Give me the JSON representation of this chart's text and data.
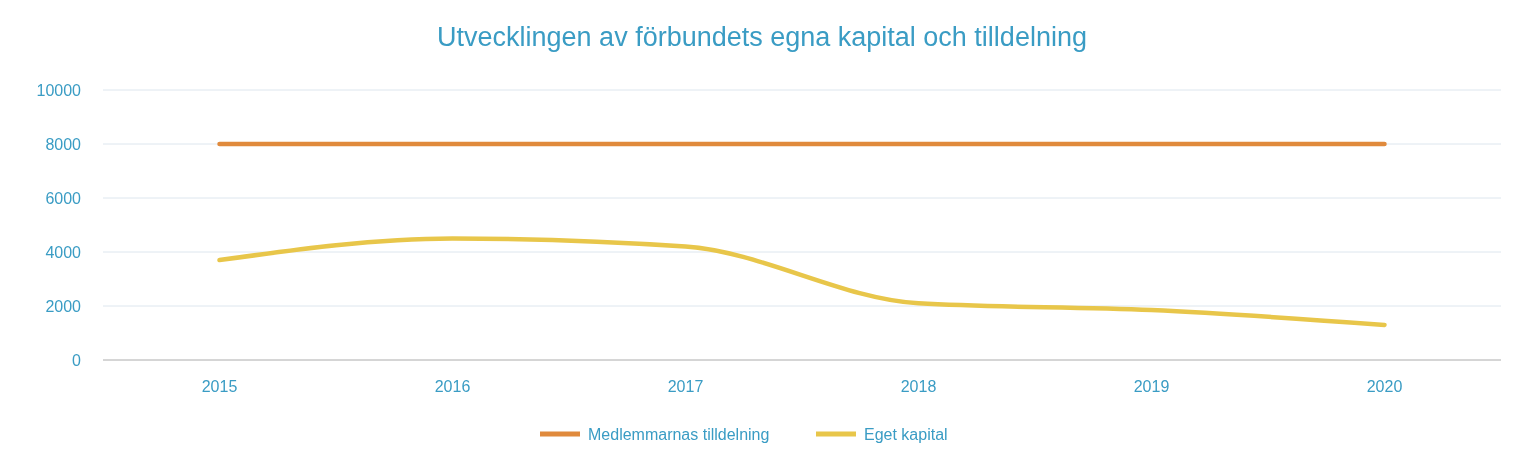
{
  "chart_data": {
    "type": "line",
    "title": "Utvecklingen av förbundets egna kapital och tilldelning",
    "categories": [
      "2015",
      "2016",
      "2017",
      "2018",
      "2019",
      "2020"
    ],
    "series": [
      {
        "name": "Medlemmarnas tilldelning",
        "color": "#e08a3c",
        "values": [
          8000,
          8000,
          8000,
          8000,
          8000,
          8000
        ]
      },
      {
        "name": "Eget kapital",
        "color": "#e8c64a",
        "values": [
          3700,
          4500,
          4200,
          2100,
          1850,
          1300
        ]
      }
    ],
    "ylim": [
      0,
      10000
    ],
    "yticks": [
      0,
      2000,
      4000,
      6000,
      8000,
      10000
    ],
    "grid": "y",
    "legend": "bottom",
    "marker": "none",
    "line_style": "solid"
  }
}
